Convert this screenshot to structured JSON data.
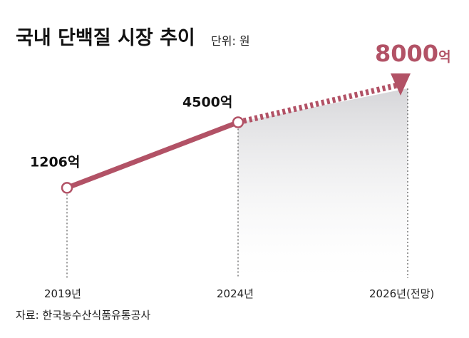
{
  "chart_data": {
    "type": "line",
    "title": "국내 단백질 시장 추이",
    "unit_label": "단위: 원",
    "categories": [
      "2019년",
      "2024년",
      "2026년(전망)"
    ],
    "values": [
      1206,
      4500,
      8000
    ],
    "value_labels": [
      "1206억",
      "4500억",
      "8000억"
    ],
    "value_suffix": "억",
    "projected_from_index": 1,
    "source": "자료: 한국농수산식품유통공사",
    "colors": {
      "line": "#b25266",
      "fill_top": "#dcdcde",
      "fill_bottom": "#ffffff"
    },
    "grid": false
  }
}
